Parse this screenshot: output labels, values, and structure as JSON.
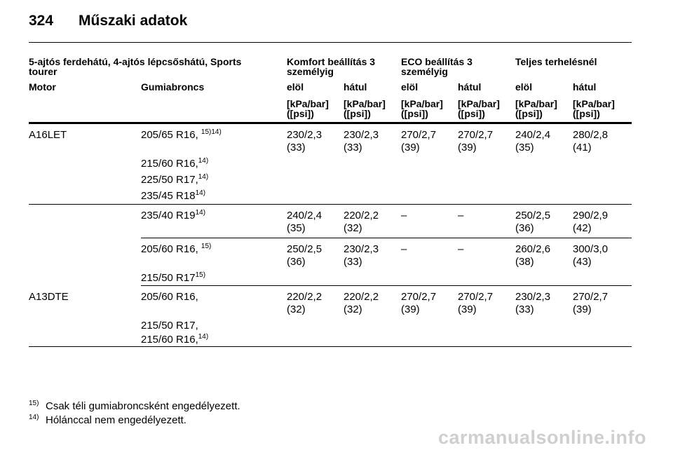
{
  "header": {
    "page_number": "324",
    "title": "Műszaki adatok"
  },
  "table": {
    "vehicle_title": "5-ajtós ferdehátú, 4-ajtós lépcsőshátú, Sports tourer",
    "group_komfort": "Komfort beállítás 3 személyig",
    "group_eco": "ECO beállítás 3 személyig",
    "group_full": "Teljes terhelésnél",
    "col_motor": "Motor",
    "col_tyre": "Gumiabroncs",
    "col_front": "elöl",
    "col_rear": "hátul",
    "unit": "[kPa/bar] ([psi])",
    "rows": [
      {
        "motor": "A16LET",
        "tyres": [
          {
            "text": "205/65 R16, ",
            "sup": "15)14)"
          },
          {
            "text": "215/60 R16,",
            "sup": "14)"
          },
          {
            "text": "225/50 R17,",
            "sup": "14)"
          },
          {
            "text": "235/45 R18",
            "sup": "14)"
          }
        ],
        "values": [
          {
            "a": "230/2,3",
            "b": "(33)"
          },
          {
            "a": "230/2,3",
            "b": "(33)"
          },
          {
            "a": "270/2,7",
            "b": "(39)"
          },
          {
            "a": "270/2,7",
            "b": "(39)"
          },
          {
            "a": "240/2,4",
            "b": "(35)"
          },
          {
            "a": "280/2,8",
            "b": "(41)"
          }
        ]
      },
      {
        "motor": "",
        "tyres": [
          {
            "text": "235/40 R19",
            "sup": "14)"
          }
        ],
        "values": [
          {
            "a": "240/2,4",
            "b": "(35)"
          },
          {
            "a": "220/2,2",
            "b": "(32)"
          },
          {
            "a": "–",
            "b": ""
          },
          {
            "a": "–",
            "b": ""
          },
          {
            "a": "250/2,5",
            "b": "(36)"
          },
          {
            "a": "290/2,9",
            "b": "(42)"
          }
        ]
      },
      {
        "motor": "",
        "tyres": [
          {
            "text": "205/60 R16, ",
            "sup": "15)"
          },
          {
            "text": "215/50 R17",
            "sup": "15)"
          }
        ],
        "values": [
          {
            "a": "250/2,5",
            "b": "(36)"
          },
          {
            "a": "230/2,3",
            "b": "(33)"
          },
          {
            "a": "–",
            "b": ""
          },
          {
            "a": "–",
            "b": ""
          },
          {
            "a": "260/2,6",
            "b": "(38)"
          },
          {
            "a": "300/3,0",
            "b": "(43)"
          }
        ]
      },
      {
        "motor": "A13DTE",
        "tyres": [
          {
            "text": "205/60 R16,",
            "sup": ""
          },
          {
            "text": "215/50 R17,",
            "sup": ""
          },
          {
            "text": "215/60 R16,",
            "sup": "14)"
          }
        ],
        "values": [
          {
            "a": "220/2,2",
            "b": "(32)"
          },
          {
            "a": "220/2,2",
            "b": "(32)"
          },
          {
            "a": "270/2,7",
            "b": "(39)"
          },
          {
            "a": "270/2,7",
            "b": "(39)"
          },
          {
            "a": "230/2,3",
            "b": "(33)"
          },
          {
            "a": "270/2,7",
            "b": "(39)"
          }
        ]
      }
    ]
  },
  "footnotes": [
    {
      "num": "15)",
      "text": "Csak téli gumiabroncsként engedélyezett."
    },
    {
      "num": "14)",
      "text": "Hólánccal nem engedélyezett."
    }
  ],
  "watermark": "carmanualsonline.info"
}
